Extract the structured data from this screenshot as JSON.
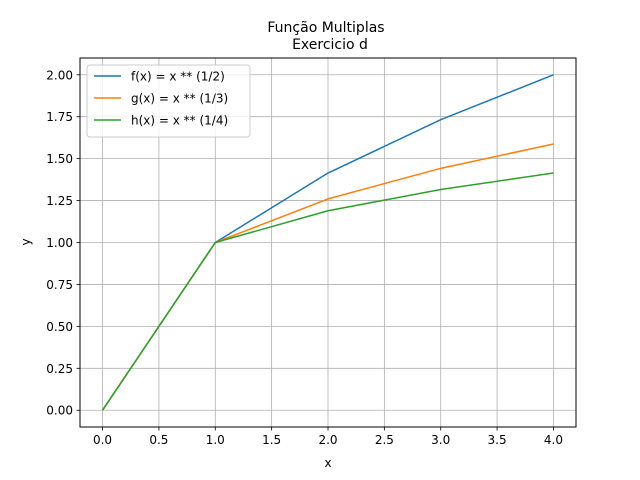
{
  "chart_data": {
    "type": "line",
    "title": "Função Multiplas",
    "subtitle": "Exercicio d",
    "xlabel": "x",
    "ylabel": "y",
    "xlim": [
      -0.2,
      4.2
    ],
    "ylim": [
      -0.1,
      2.1
    ],
    "xticks": [
      "0.0",
      "0.5",
      "1.0",
      "1.5",
      "2.0",
      "2.5",
      "3.0",
      "3.5",
      "4.0"
    ],
    "yticks": [
      "0.00",
      "0.25",
      "0.50",
      "0.75",
      "1.00",
      "1.25",
      "1.50",
      "1.75",
      "2.00"
    ],
    "grid": true,
    "legend_position": "top-left",
    "x": [
      0,
      1,
      2,
      3,
      4
    ],
    "series": [
      {
        "name": "f(x) = x ** (1/2)",
        "color": "#1f77b4",
        "values": [
          0,
          1,
          1.4142,
          1.7321,
          2.0
        ]
      },
      {
        "name": "g(x) = x ** (1/3)",
        "color": "#ff7f0e",
        "values": [
          0,
          1,
          1.2599,
          1.4422,
          1.5874
        ]
      },
      {
        "name": "h(x) = x ** (1/4)",
        "color": "#2ca02c",
        "values": [
          0,
          1,
          1.1892,
          1.3161,
          1.4142
        ]
      }
    ]
  }
}
